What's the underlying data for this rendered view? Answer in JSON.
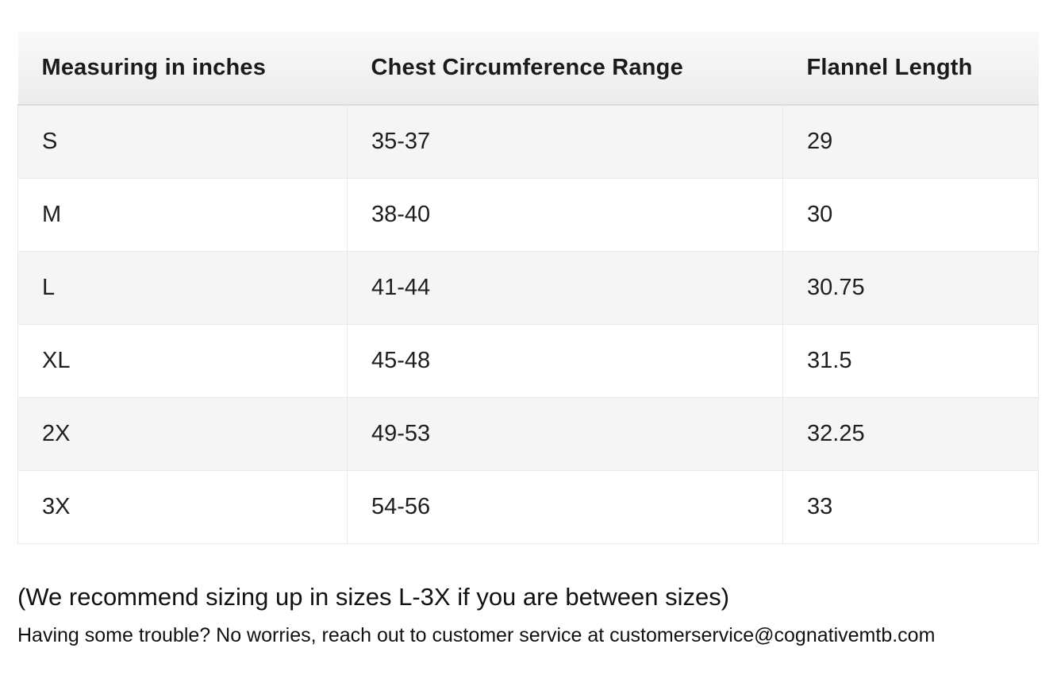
{
  "size_chart": {
    "headers": {
      "measuring": "Measuring in inches",
      "chest": "Chest Circumference Range",
      "length": "Flannel Length"
    },
    "rows": [
      {
        "size": "S",
        "chest_range": "35-37",
        "flannel_length": "29"
      },
      {
        "size": "M",
        "chest_range": "38-40",
        "flannel_length": "30"
      },
      {
        "size": "L",
        "chest_range": "41-44",
        "flannel_length": "30.75"
      },
      {
        "size": "XL",
        "chest_range": "45-48",
        "flannel_length": "31.5"
      },
      {
        "size": "2X",
        "chest_range": "49-53",
        "flannel_length": "32.25"
      },
      {
        "size": "3X",
        "chest_range": "54-56",
        "flannel_length": "33"
      }
    ]
  },
  "notes": {
    "sizing_recommendation": "(We recommend sizing up in sizes L-3X if you are between sizes)",
    "support_prefix": "Having some trouble? No worries, reach out to customer service at ",
    "support_email": "customerservice@cognativemtb.com"
  },
  "colors": {
    "header_gradient_top": "#f9f9f9",
    "header_gradient_bottom": "#ececec",
    "header_border_bottom": "#dcdcdc",
    "row_alt_background": "#f5f5f5",
    "row_background": "#ffffff",
    "cell_border": "#e9e9e9",
    "text": "#1b1b1b"
  }
}
